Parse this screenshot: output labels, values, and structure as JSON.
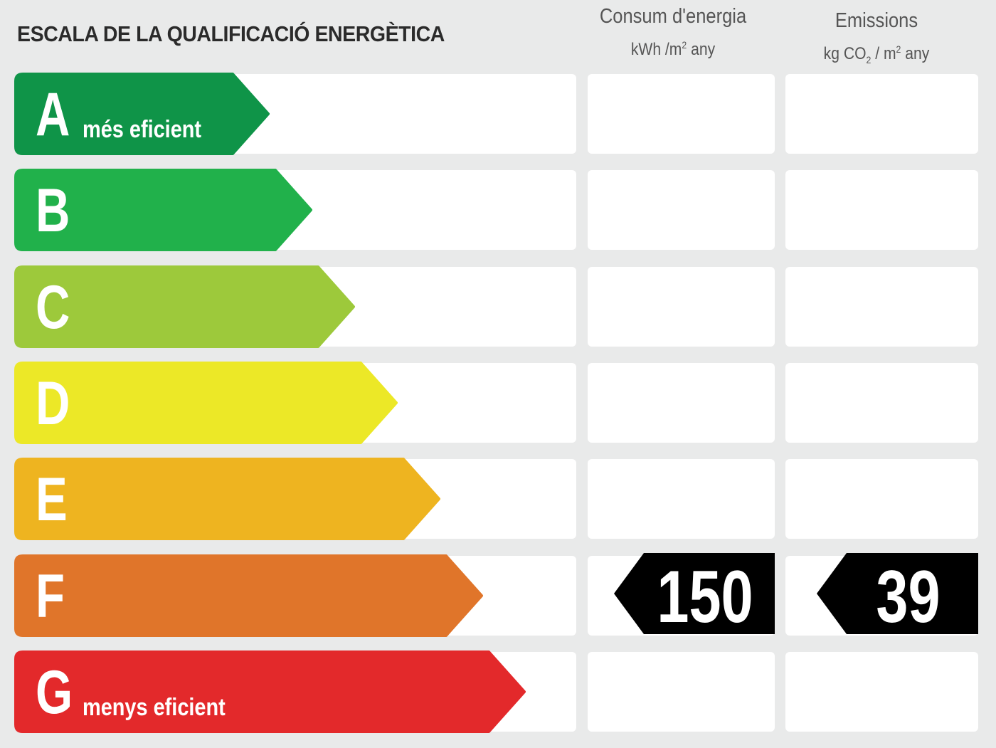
{
  "title": "ESCALA DE LA QUALIFICACIÓ ENERGÈTICA",
  "columns": {
    "energy": {
      "title": "Consum d'energia",
      "unit_a": "kWh /m",
      "unit_sup": "2",
      "unit_b": " any"
    },
    "emissions": {
      "title": "Emissions",
      "unit_a": "kg CO",
      "unit_sub": "2",
      "unit_c": " / m",
      "unit_sup": "2",
      "unit_b": " any"
    }
  },
  "chart_data": {
    "type": "table",
    "categories": [
      "A",
      "B",
      "C",
      "D",
      "E",
      "F",
      "G"
    ],
    "category_notes": {
      "A": "més eficient",
      "G": "menys eficient"
    },
    "colors": [
      "#0f9448",
      "#21b14b",
      "#9dc93b",
      "#ece827",
      "#eeb420",
      "#e0752a",
      "#e3292b"
    ],
    "rating": "F",
    "energy_consumption": 150,
    "emissions": 39
  }
}
